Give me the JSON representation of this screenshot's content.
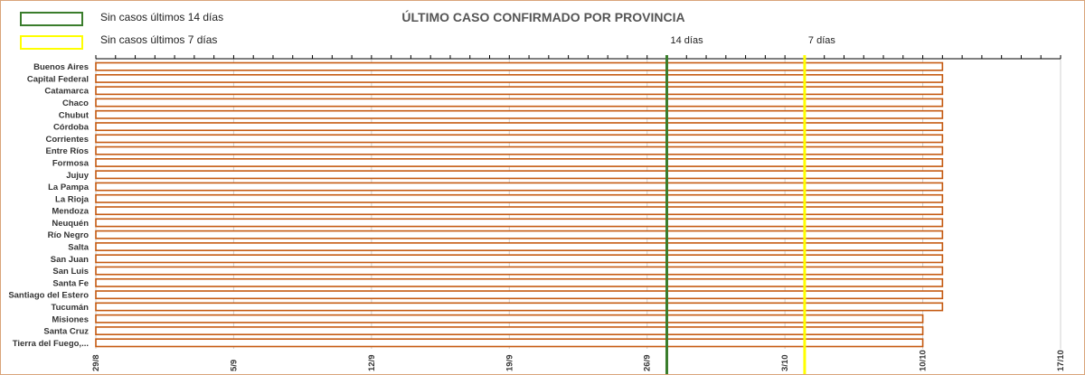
{
  "colors": {
    "bar_stroke": "#c55a11",
    "green_line": "#3a7d2c",
    "yellow_line": "#ffff00",
    "grid": "#d0d0d0",
    "axis": "#000000"
  },
  "legend": [
    {
      "label": "Sin casos últimos 14 días",
      "color": "#3a7d2c"
    },
    {
      "label": "Sin casos últimos 7 días",
      "color": "#ffff00"
    }
  ],
  "chart_data": {
    "type": "bar",
    "orientation": "horizontal",
    "title": "ÚLTIMO CASO CONFIRMADO POR PROVINCIA",
    "categories": [
      "Buenos Aires",
      "Capital Federal",
      "Catamarca",
      "Chaco",
      "Chubut",
      "Córdoba",
      "Corrientes",
      "Entre Ríos",
      "Formosa",
      "Jujuy",
      "La Pampa",
      "La Rioja",
      "Mendoza",
      "Neuquén",
      "Río Negro",
      "Salta",
      "San Juan",
      "San Luis",
      "Santa Fe",
      "Santiago del Estero",
      "Tucumán",
      "Misiones",
      "Santa Cruz",
      "Tierra del Fuego,..."
    ],
    "bar_start": "2020-08-29",
    "values": [
      "2020-10-11",
      "2020-10-11",
      "2020-10-11",
      "2020-10-11",
      "2020-10-11",
      "2020-10-11",
      "2020-10-11",
      "2020-10-11",
      "2020-10-11",
      "2020-10-11",
      "2020-10-11",
      "2020-10-11",
      "2020-10-11",
      "2020-10-11",
      "2020-10-11",
      "2020-10-11",
      "2020-10-11",
      "2020-10-11",
      "2020-10-11",
      "2020-10-11",
      "2020-10-11",
      "2020-10-10",
      "2020-10-10",
      "2020-10-10"
    ],
    "x_range": [
      "2020-08-29",
      "2020-10-17"
    ],
    "x_ticks": [
      "29/8",
      "5/9",
      "12/9",
      "19/9",
      "26/9",
      "3/10",
      "10/10",
      "17/10"
    ],
    "reference_lines": [
      {
        "label": "14 días",
        "date": "2020-09-27",
        "color": "#3a7d2c"
      },
      {
        "label": "7 días",
        "date": "2020-10-04",
        "color": "#ffff00"
      }
    ],
    "grid": true
  }
}
